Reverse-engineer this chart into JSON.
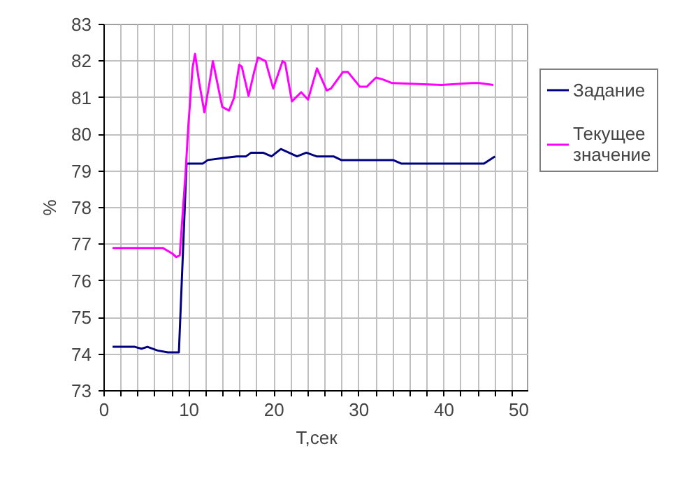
{
  "chart_data": {
    "type": "line",
    "xlabel": "Т,сек",
    "ylabel": "%",
    "xlim": [
      0,
      50
    ],
    "ylim": [
      73,
      83
    ],
    "xticks": [
      0,
      {
        "value": 2,
        "label": null
      },
      {
        "value": 4,
        "label": null
      },
      {
        "value": 6,
        "label": null
      },
      {
        "value": 8,
        "label": null
      },
      10,
      {
        "value": 12,
        "label": null
      },
      {
        "value": 14,
        "label": null
      },
      {
        "value": 16,
        "label": null
      },
      {
        "value": 18,
        "label": null
      },
      20,
      {
        "value": 22,
        "label": null
      },
      {
        "value": 24,
        "label": null
      },
      {
        "value": 26,
        "label": null
      },
      {
        "value": 28,
        "label": null
      },
      30,
      {
        "value": 32,
        "label": null
      },
      {
        "value": 34,
        "label": null
      },
      {
        "value": 36,
        "label": null
      },
      {
        "value": 38,
        "label": null
      },
      40,
      {
        "value": 42,
        "label": null
      },
      {
        "value": 44,
        "label": null
      },
      {
        "value": 46,
        "label": null
      },
      {
        "value": 48,
        "label": null
      },
      50
    ],
    "yticks": [
      73,
      74,
      75,
      76,
      77,
      78,
      79,
      80,
      81,
      82,
      83
    ],
    "grid": true,
    "legend": "right",
    "marker": "none",
    "line_style": "solid",
    "series": [
      {
        "name": "Задание",
        "color": "#000080",
        "x": [
          1,
          3.6,
          4.4,
          5.1,
          6.3,
          7.5,
          8.3,
          8.8,
          9.7,
          11.6,
          12.2,
          13.9,
          15.6,
          16.7,
          17.3,
          18.7,
          19.7,
          20.8,
          22.7,
          23.8,
          25,
          27,
          27.9,
          34,
          35,
          44.7,
          46
        ],
        "values": [
          74.2,
          74.2,
          74.15,
          74.2,
          74.1,
          74.05,
          74.05,
          74.05,
          79.2,
          79.2,
          79.3,
          79.35,
          79.4,
          79.4,
          79.5,
          79.5,
          79.4,
          79.6,
          79.4,
          79.5,
          79.4,
          79.4,
          79.3,
          79.3,
          79.2,
          79.2,
          79.4
        ]
      },
      {
        "name": "Текущее значение",
        "color": "#ff00ff",
        "x": [
          1,
          6.9,
          8,
          8.5,
          8.9,
          9.6,
          9.9,
          10.4,
          10.7,
          11.2,
          11.8,
          12.4,
          12.8,
          13.9,
          14.7,
          15.3,
          15.9,
          16.2,
          17,
          17.6,
          18.1,
          19,
          19.9,
          21,
          21.3,
          22.1,
          23.2,
          24,
          25.05,
          26.2,
          26.7,
          28.1,
          28.7,
          30.1,
          30.9,
          32,
          32.8,
          33.9,
          39.7,
          43.3,
          44.1,
          45.8
        ],
        "values": [
          76.9,
          76.9,
          76.75,
          76.65,
          76.7,
          79.0,
          80.2,
          81.8,
          82.2,
          81.4,
          80.6,
          81.4,
          82.0,
          80.75,
          80.65,
          81.0,
          81.9,
          81.85,
          81.05,
          81.65,
          82.1,
          82.0,
          81.25,
          82.0,
          81.95,
          80.9,
          81.15,
          80.95,
          81.8,
          81.2,
          81.25,
          81.7,
          81.7,
          81.3,
          81.3,
          81.55,
          81.5,
          81.4,
          81.35,
          81.4,
          81.4,
          81.35
        ]
      }
    ]
  }
}
